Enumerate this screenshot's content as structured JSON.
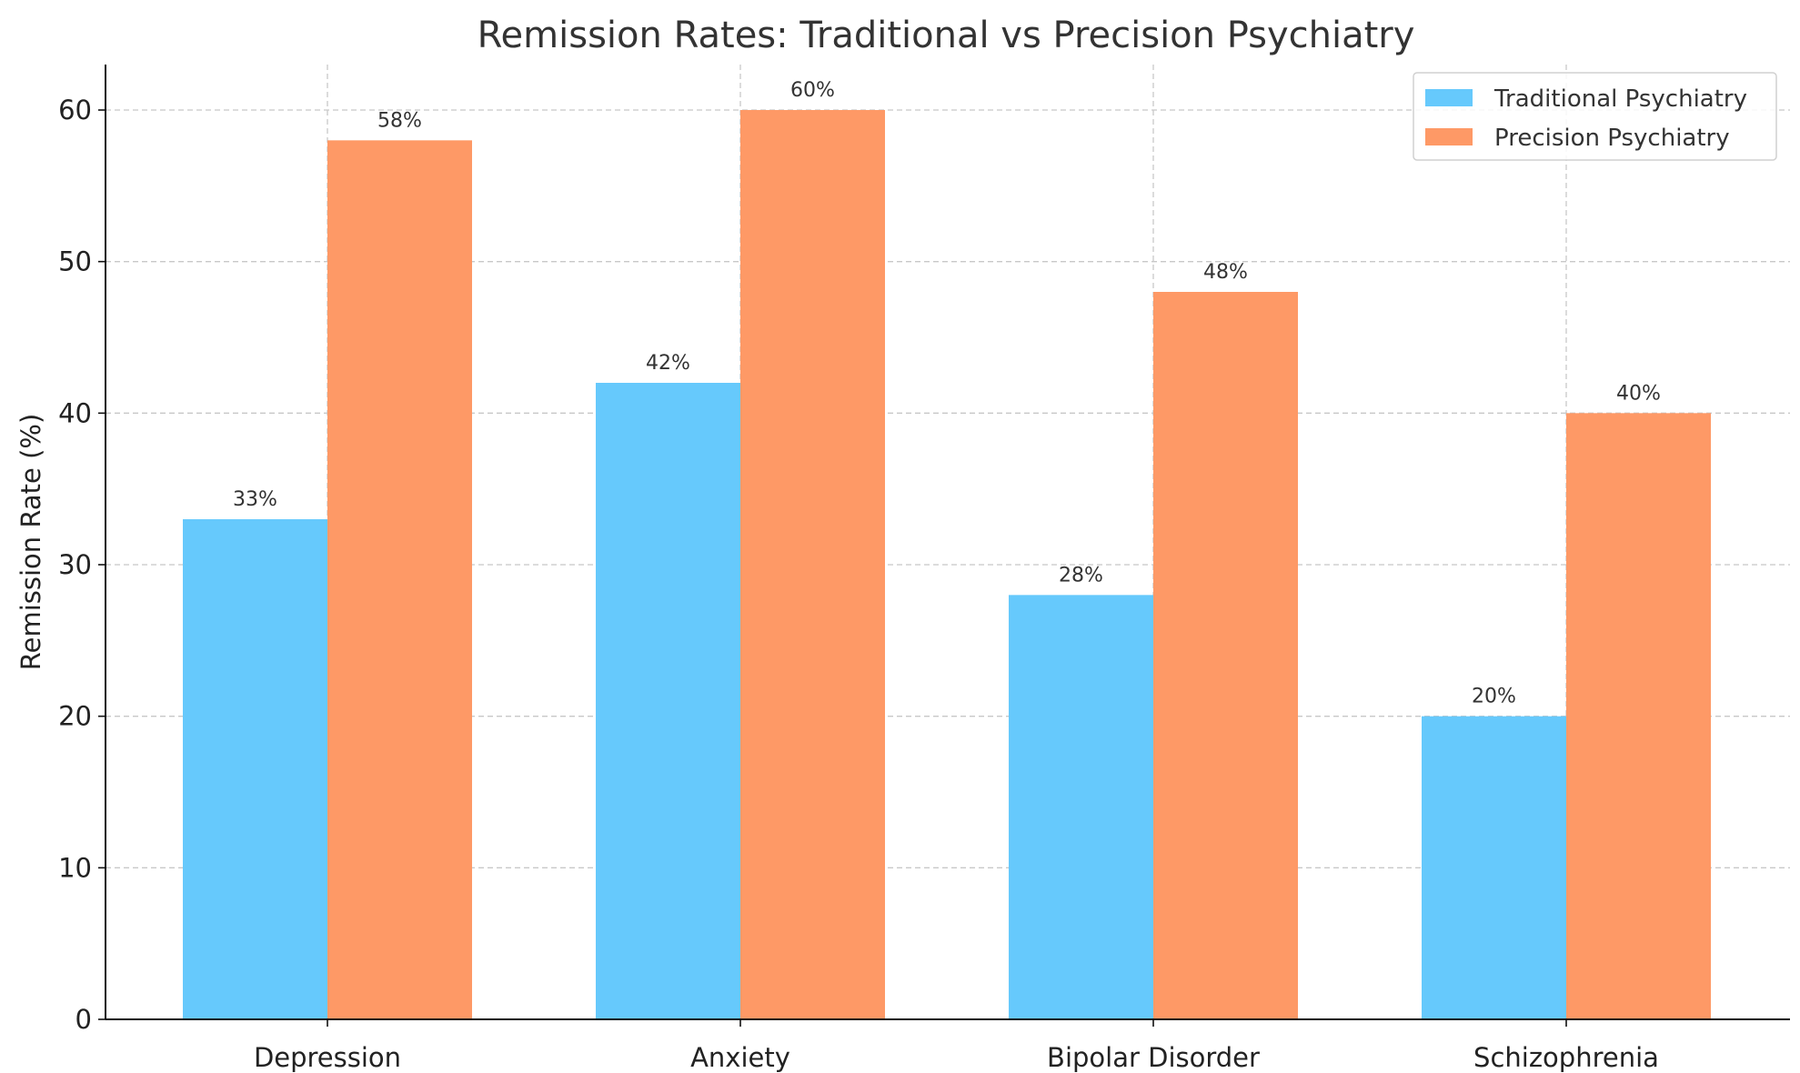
{
  "chart_data": {
    "type": "bar",
    "title": "Remission Rates: Traditional vs Precision Psychiatry",
    "xlabel": "",
    "ylabel": "Remission Rate (%)",
    "categories": [
      "Depression",
      "Anxiety",
      "Bipolar Disorder",
      "Schizophrenia"
    ],
    "series": [
      {
        "name": "Traditional Psychiatry",
        "values": [
          33,
          42,
          28,
          20
        ],
        "labels": [
          "33%",
          "42%",
          "28%",
          "20%"
        ],
        "color": "#66c9fc"
      },
      {
        "name": "Precision Psychiatry",
        "values": [
          58,
          60,
          48,
          40
        ],
        "labels": [
          "58%",
          "60%",
          "48%",
          "40%"
        ],
        "color": "#fe9966"
      }
    ],
    "ylim": [
      0,
      63
    ],
    "yticks": [
      0,
      10,
      20,
      30,
      40,
      50,
      60
    ],
    "grid": true,
    "legend_position": "top-right"
  }
}
